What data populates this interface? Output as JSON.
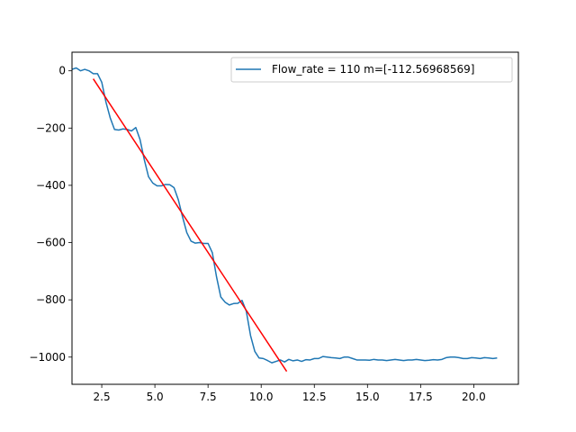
{
  "chart_data": {
    "type": "line",
    "title": "",
    "xlabel": "",
    "ylabel": "",
    "xlim": [
      1.1,
      22.1
    ],
    "ylim": [
      -1095,
      65
    ],
    "xticks": [
      2.5,
      5.0,
      7.5,
      10.0,
      12.5,
      15.0,
      17.5,
      20.0
    ],
    "xtick_labels": [
      "2.5",
      "5.0",
      "7.5",
      "10.0",
      "12.5",
      "15.0",
      "17.5",
      "20.0"
    ],
    "yticks": [
      0,
      -200,
      -400,
      -600,
      -800,
      -1000
    ],
    "ytick_labels": [
      "0",
      "−200",
      "−400",
      "−600",
      "−800",
      "−1000"
    ],
    "grid": false,
    "legend_position": "top-right",
    "series": [
      {
        "name": "Flow_rate = 110 m=[-112.56968569]",
        "color": "#1f77b4",
        "x": [
          1.1,
          1.3,
          1.5,
          1.7,
          1.9,
          2.1,
          2.3,
          2.5,
          2.7,
          2.9,
          3.1,
          3.3,
          3.5,
          3.7,
          3.9,
          4.1,
          4.3,
          4.5,
          4.7,
          4.9,
          5.1,
          5.3,
          5.5,
          5.7,
          5.9,
          6.1,
          6.3,
          6.5,
          6.7,
          6.9,
          7.1,
          7.3,
          7.5,
          7.7,
          7.9,
          8.1,
          8.3,
          8.5,
          8.7,
          8.9,
          9.1,
          9.3,
          9.5,
          9.7,
          9.9,
          10.1,
          10.3,
          10.5,
          10.7,
          10.9,
          11.1,
          11.3,
          11.5,
          11.7,
          11.9,
          12.1,
          12.3,
          12.5,
          12.7,
          12.9,
          13.1,
          13.3,
          13.5,
          13.7,
          13.9,
          14.1,
          14.3,
          14.5,
          14.7,
          14.9,
          15.1,
          15.3,
          15.5,
          15.7,
          15.9,
          16.1,
          16.3,
          16.5,
          16.7,
          16.9,
          17.1,
          17.3,
          17.5,
          17.7,
          17.9,
          18.1,
          18.3,
          18.5,
          18.7,
          18.9,
          19.1,
          19.3,
          19.5,
          19.7,
          19.9,
          20.1,
          20.3,
          20.5,
          20.7,
          20.9,
          21.1
        ],
        "y": [
          5,
          10,
          0,
          5,
          0,
          -10,
          -10,
          -40,
          -110,
          -165,
          -205,
          -207,
          -203,
          -205,
          -210,
          -198,
          -240,
          -310,
          -370,
          -392,
          -402,
          -402,
          -397,
          -398,
          -408,
          -450,
          -510,
          -565,
          -595,
          -602,
          -600,
          -603,
          -603,
          -635,
          -720,
          -790,
          -808,
          -818,
          -813,
          -812,
          -802,
          -840,
          -925,
          -980,
          -1003,
          -1005,
          -1012,
          -1020,
          -1015,
          -1010,
          -1017,
          -1008,
          -1013,
          -1010,
          -1015,
          -1009,
          -1010,
          -1005,
          -1005,
          -998,
          -1000,
          -1002,
          -1003,
          -1005,
          -1000,
          -1000,
          -1005,
          -1010,
          -1010,
          -1010,
          -1011,
          -1008,
          -1010,
          -1010,
          -1012,
          -1010,
          -1008,
          -1010,
          -1012,
          -1010,
          -1010,
          -1008,
          -1010,
          -1012,
          -1011,
          -1009,
          -1010,
          -1008,
          -1002,
          -1000,
          -1000,
          -1002,
          -1005,
          -1005,
          -1002,
          -1003,
          -1005,
          -1002,
          -1003,
          -1005,
          -1003
        ]
      },
      {
        "name": "",
        "color": "#ff0000",
        "x": [
          2.1,
          11.2
        ],
        "y": [
          -28,
          -1050
        ]
      }
    ]
  }
}
